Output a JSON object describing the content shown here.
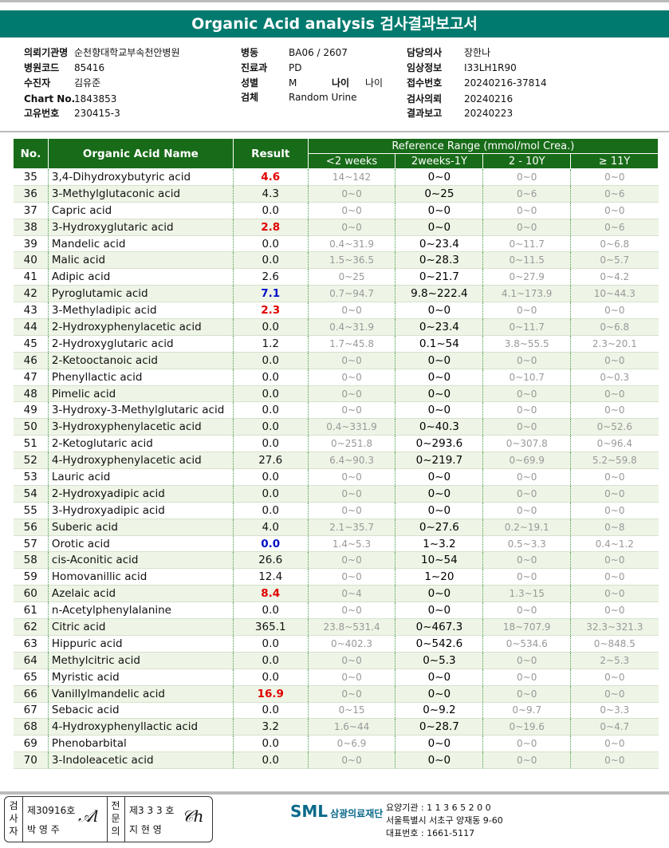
{
  "title": "Organic Acid analysis 검사결과보고서",
  "info": {
    "col1": [
      [
        "의뢰기관명",
        "순천향대학교부속천안병원"
      ],
      [
        "병원코드",
        "85416"
      ],
      [
        "수진자",
        "김유준"
      ],
      [
        "Chart No.",
        "1843853"
      ],
      [
        "고유번호",
        "230415-3"
      ]
    ],
    "col2": [
      [
        "병동",
        "BA06 / 2607"
      ],
      [
        "진료과",
        "PD"
      ],
      [
        "성별",
        "M"
      ],
      [
        "검체",
        "Random Urine"
      ]
    ],
    "age_label": "나이",
    "age_value": "나이",
    "col3": [
      [
        "담당의사",
        "장한나"
      ],
      [
        "임상정보",
        "I33LH1R90"
      ],
      [
        "접수번호",
        "20240216-37814"
      ],
      [
        "검사의뢰",
        "20240216"
      ],
      [
        "결과보고",
        "20240223"
      ]
    ]
  },
  "table": {
    "headers": {
      "no": "No.",
      "name": "Organic Acid Name",
      "result": "Result",
      "ref": "Reference Range (mmol/mol Crea.)",
      "sub": [
        "<2 weeks",
        "2weeks-1Y",
        "2 - 10Y",
        "≥ 11Y"
      ]
    },
    "rows": [
      [
        "35",
        "3,4-Dihydroxybutyric acid",
        "4.6",
        "high",
        "14~142",
        "0~0",
        "0~0",
        "0~0"
      ],
      [
        "36",
        "3-Methylglutaconic acid",
        "4.3",
        "",
        "0~0",
        "0~25",
        "0~6",
        "0~6"
      ],
      [
        "37",
        "Capric acid",
        "0.0",
        "",
        "0~0",
        "0~0",
        "0~0",
        "0~0"
      ],
      [
        "38",
        "3-Hydroxyglutaric acid",
        "2.8",
        "high",
        "0~0",
        "0~0",
        "0~0",
        "0~6"
      ],
      [
        "39",
        "Mandelic acid",
        "0.0",
        "",
        "0.4~31.9",
        "0~23.4",
        "0~11.7",
        "0~6.8"
      ],
      [
        "40",
        "Malic acid",
        "0.0",
        "",
        "1.5~36.5",
        "0~28.3",
        "0~11.5",
        "0~5.7"
      ],
      [
        "41",
        "Adipic acid",
        "2.6",
        "",
        "0~25",
        "0~21.7",
        "0~27.9",
        "0~4.2"
      ],
      [
        "42",
        "Pyroglutamic acid",
        "7.1",
        "low",
        "0.7~94.7",
        "9.8~222.4",
        "4.1~173.9",
        "10~44.3"
      ],
      [
        "43",
        "3-Methyladipic acid",
        "2.3",
        "high",
        "0~0",
        "0~0",
        "0~0",
        "0~0"
      ],
      [
        "44",
        "2-Hydroxyphenylacetic acid",
        "0.0",
        "",
        "0.4~31.9",
        "0~23.4",
        "0~11.7",
        "0~6.8"
      ],
      [
        "45",
        "2-Hydroxyglutaric acid",
        "1.2",
        "",
        "1.7~45.8",
        "0.1~54",
        "3.8~55.5",
        "2.3~20.1"
      ],
      [
        "46",
        "2-Ketooctanoic acid",
        "0.0",
        "",
        "0~0",
        "0~0",
        "0~0",
        "0~0"
      ],
      [
        "47",
        "Phenyllactic acid",
        "0.0",
        "",
        "0~0",
        "0~0",
        "0~10.7",
        "0~0.3"
      ],
      [
        "48",
        "Pimelic acid",
        "0.0",
        "",
        "0~0",
        "0~0",
        "0~0",
        "0~0"
      ],
      [
        "49",
        "3-Hydroxy-3-Methylglutaric acid",
        "0.0",
        "",
        "0~0",
        "0~0",
        "0~0",
        "0~0"
      ],
      [
        "50",
        "3-Hydroxyphenylacetic acid",
        "0.0",
        "",
        "0.4~331.9",
        "0~40.3",
        "0~0",
        "0~52.6"
      ],
      [
        "51",
        "2-Ketoglutaric acid",
        "0.0",
        "",
        "0~251.8",
        "0~293.6",
        "0~307.8",
        "0~96.4"
      ],
      [
        "52",
        "4-Hydroxyphenylacetic acid",
        "27.6",
        "",
        "6.4~90.3",
        "0~219.7",
        "0~69.9",
        "5.2~59.8"
      ],
      [
        "53",
        "Lauric acid",
        "0.0",
        "",
        "0~0",
        "0~0",
        "0~0",
        "0~0"
      ],
      [
        "54",
        "2-Hydroxyadipic acid",
        "0.0",
        "",
        "0~0",
        "0~0",
        "0~0",
        "0~0"
      ],
      [
        "55",
        "3-Hydroxyadipic acid",
        "0.0",
        "",
        "0~0",
        "0~0",
        "0~0",
        "0~0"
      ],
      [
        "56",
        "Suberic acid",
        "4.0",
        "",
        "2.1~35.7",
        "0~27.6",
        "0.2~19.1",
        "0~8"
      ],
      [
        "57",
        "Orotic acid",
        "0.0",
        "low",
        "1.4~5.3",
        "1~3.2",
        "0.5~3.3",
        "0.4~1.2"
      ],
      [
        "58",
        "cis-Aconitic acid",
        "26.6",
        "",
        "0~0",
        "10~54",
        "0~0",
        "0~0"
      ],
      [
        "59",
        "Homovanillic acid",
        "12.4",
        "",
        "0~0",
        "1~20",
        "0~0",
        "0~0"
      ],
      [
        "60",
        "Azelaic acid",
        "8.4",
        "high",
        "0~4",
        "0~0",
        "1.3~15",
        "0~0"
      ],
      [
        "61",
        "n-Acetylphenylalanine",
        "0.0",
        "",
        "0~0",
        "0~0",
        "0~0",
        "0~0"
      ],
      [
        "62",
        "Citric acid",
        "365.1",
        "",
        "23.8~531.4",
        "0~467.3",
        "18~707.9",
        "32.3~321.3"
      ],
      [
        "63",
        "Hippuric acid",
        "0.0",
        "",
        "0~402.3",
        "0~542.6",
        "0~534.6",
        "0~848.5"
      ],
      [
        "64",
        "Methylcitric acid",
        "0.0",
        "",
        "0~0",
        "0~5.3",
        "0~0",
        "2~5.3"
      ],
      [
        "65",
        "Myristic acid",
        "0.0",
        "",
        "0~0",
        "0~0",
        "0~0",
        "0~0"
      ],
      [
        "66",
        "Vanillylmandelic acid",
        "16.9",
        "high",
        "0~0",
        "0~0",
        "0~0",
        "0~0"
      ],
      [
        "67",
        "Sebacic acid",
        "0.0",
        "",
        "0~15",
        "0~9.2",
        "0~9.7",
        "0~3.3"
      ],
      [
        "68",
        "4-Hydroxyphenyllactic acid",
        "3.2",
        "",
        "1.6~44",
        "0~28.7",
        "0~19.6",
        "0~4.7"
      ],
      [
        "69",
        "Phenobarbital",
        "0.0",
        "",
        "0~6.9",
        "0~0",
        "0~0",
        "0~0"
      ],
      [
        "70",
        "3-Indoleacetic acid",
        "0.0",
        "",
        "0~0",
        "0~0",
        "0~0",
        "0~0"
      ]
    ]
  },
  "footer": {
    "examiner_label": "검사자",
    "examiner_no": "제30916호",
    "examiner_name": "박 영 주",
    "doctor_label": "전문의",
    "doctor_no": "제3 3 3 호",
    "doctor_name": "지 현 영",
    "logo_text": "SML",
    "org_name": "삼광의료재단",
    "lines": [
      "요양기관 : 1 1 3 6 5 2 0 0",
      "서울특별시 서초구 양재동 9-60",
      "대표번호 : 1661-5117"
    ]
  },
  "colors": {
    "title_bg": "#007a6e",
    "header_bg": "#186b18",
    "alt_row": "#eef5e6",
    "high": "#e00000",
    "low": "#0010c8"
  }
}
